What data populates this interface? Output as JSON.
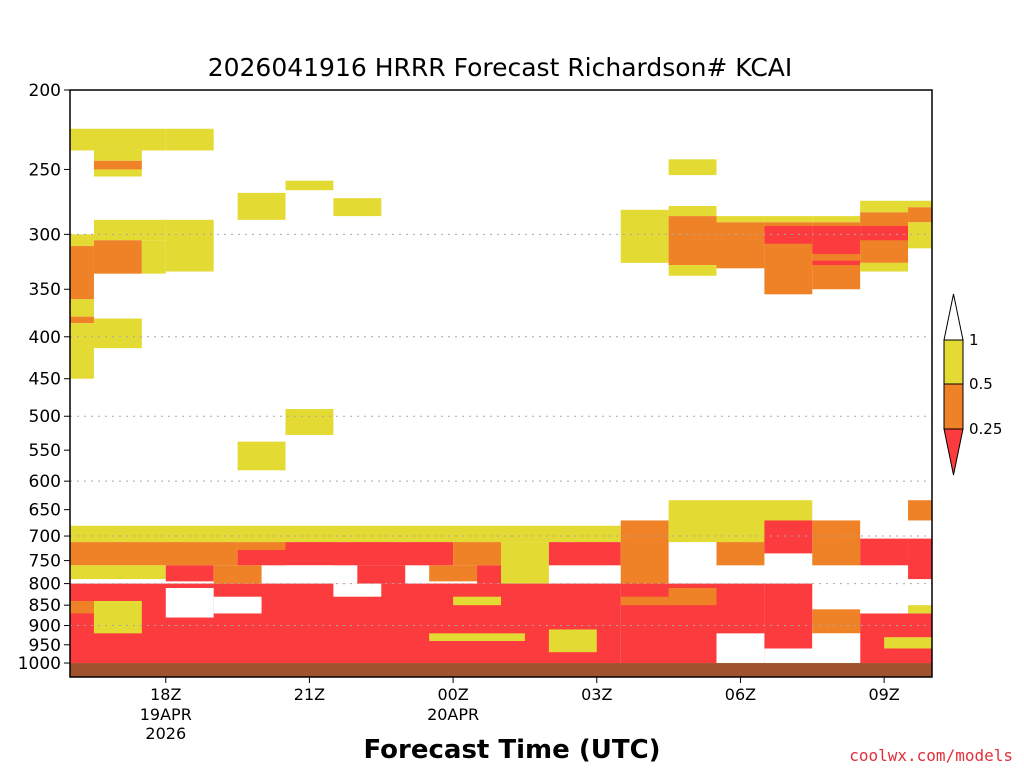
{
  "chart_data": {
    "type": "heatmap",
    "title": "2026041916 HRRR Forecast Richardson# KCAI",
    "xlabel": "Forecast Time (UTC)",
    "ylabel": "",
    "credit": "coolwx.com/models",
    "x_range_hours": [
      16.0,
      34.0
    ],
    "y_range_hpa": [
      200,
      1040
    ],
    "y_scale": "log",
    "y_ticks": [
      200,
      250,
      300,
      350,
      400,
      450,
      500,
      550,
      600,
      650,
      700,
      750,
      800,
      850,
      900,
      950,
      1000
    ],
    "gridlines_hpa": [
      300,
      400,
      500,
      600,
      700,
      800,
      900
    ],
    "x_ticks": [
      {
        "hour": 18,
        "label": "18Z",
        "sub": [
          "19APR",
          "2026"
        ]
      },
      {
        "hour": 21,
        "label": "21Z",
        "sub": []
      },
      {
        "hour": 24,
        "label": "00Z",
        "sub": [
          "20APR"
        ]
      },
      {
        "hour": 27,
        "label": "03Z",
        "sub": []
      },
      {
        "hour": 30,
        "label": "06Z",
        "sub": []
      },
      {
        "hour": 33,
        "label": "09Z",
        "sub": []
      }
    ],
    "colorbar": {
      "levels": [
        "1",
        "0.5",
        "0.25"
      ],
      "colors": {
        "white": "#ffffff",
        "yellow": "#e3da34",
        "orange": "#ef8126",
        "red": "#fc3b3e",
        "ground": "#a0522d"
      }
    },
    "cells": [
      {
        "t0": 16.0,
        "t1": 18.0,
        "p0": 223,
        "p1": 237,
        "c": "yellow"
      },
      {
        "t0": 18.0,
        "t1": 19.0,
        "p0": 223,
        "p1": 237,
        "c": "yellow"
      },
      {
        "t0": 16.5,
        "t1": 17.5,
        "p0": 237,
        "p1": 244,
        "c": "yellow"
      },
      {
        "t0": 16.5,
        "t1": 17.5,
        "p0": 244,
        "p1": 250,
        "c": "orange"
      },
      {
        "t0": 16.5,
        "t1": 17.5,
        "p0": 250,
        "p1": 255,
        "c": "yellow"
      },
      {
        "t0": 16.5,
        "t1": 18.0,
        "p0": 288,
        "p1": 305,
        "c": "yellow"
      },
      {
        "t0": 18.0,
        "t1": 19.0,
        "p0": 288,
        "p1": 333,
        "c": "yellow"
      },
      {
        "t0": 16.0,
        "t1": 16.5,
        "p0": 300,
        "p1": 310,
        "c": "yellow"
      },
      {
        "t0": 16.5,
        "t1": 17.5,
        "p0": 305,
        "p1": 335,
        "c": "orange"
      },
      {
        "t0": 17.5,
        "t1": 18.0,
        "p0": 305,
        "p1": 335,
        "c": "yellow"
      },
      {
        "t0": 16.0,
        "t1": 16.5,
        "p0": 310,
        "p1": 360,
        "c": "orange"
      },
      {
        "t0": 16.0,
        "t1": 16.5,
        "p0": 360,
        "p1": 378,
        "c": "yellow"
      },
      {
        "t0": 16.0,
        "t1": 16.5,
        "p0": 378,
        "p1": 385,
        "c": "orange"
      },
      {
        "t0": 16.0,
        "t1": 16.5,
        "p0": 385,
        "p1": 450,
        "c": "yellow"
      },
      {
        "t0": 16.5,
        "t1": 17.5,
        "p0": 380,
        "p1": 413,
        "c": "yellow"
      },
      {
        "t0": 19.5,
        "t1": 20.5,
        "p0": 267,
        "p1": 288,
        "c": "yellow"
      },
      {
        "t0": 20.5,
        "t1": 21.5,
        "p0": 258,
        "p1": 265,
        "c": "yellow"
      },
      {
        "t0": 21.5,
        "t1": 22.5,
        "p0": 271,
        "p1": 285,
        "c": "yellow"
      },
      {
        "t0": 20.5,
        "t1": 21.5,
        "p0": 490,
        "p1": 527,
        "c": "yellow"
      },
      {
        "t0": 19.5,
        "t1": 20.5,
        "p0": 537,
        "p1": 582,
        "c": "yellow"
      },
      {
        "t0": 27.5,
        "t1": 28.5,
        "p0": 280,
        "p1": 325,
        "c": "yellow"
      },
      {
        "t0": 28.5,
        "t1": 29.5,
        "p0": 243,
        "p1": 254,
        "c": "yellow"
      },
      {
        "t0": 28.5,
        "t1": 29.5,
        "p0": 277,
        "p1": 285,
        "c": "yellow"
      },
      {
        "t0": 28.5,
        "t1": 29.5,
        "p0": 285,
        "p1": 327,
        "c": "orange"
      },
      {
        "t0": 28.5,
        "t1": 29.5,
        "p0": 327,
        "p1": 337,
        "c": "yellow"
      },
      {
        "t0": 29.5,
        "t1": 30.5,
        "p0": 285,
        "p1": 290,
        "c": "yellow"
      },
      {
        "t0": 29.5,
        "t1": 30.5,
        "p0": 290,
        "p1": 330,
        "c": "orange"
      },
      {
        "t0": 30.5,
        "t1": 31.5,
        "p0": 285,
        "p1": 290,
        "c": "yellow"
      },
      {
        "t0": 30.5,
        "t1": 31.5,
        "p0": 290,
        "p1": 355,
        "c": "orange"
      },
      {
        "t0": 30.5,
        "t1": 31.5,
        "p0": 293,
        "p1": 308,
        "c": "red"
      },
      {
        "t0": 31.5,
        "t1": 32.5,
        "p0": 285,
        "p1": 290,
        "c": "yellow"
      },
      {
        "t0": 31.5,
        "t1": 32.5,
        "p0": 290,
        "p1": 350,
        "c": "orange"
      },
      {
        "t0": 31.5,
        "t1": 32.5,
        "p0": 293,
        "p1": 317,
        "c": "red"
      },
      {
        "t0": 31.5,
        "t1": 32.5,
        "p0": 323,
        "p1": 327,
        "c": "red"
      },
      {
        "t0": 32.5,
        "t1": 33.5,
        "p0": 273,
        "p1": 282,
        "c": "yellow"
      },
      {
        "t0": 32.5,
        "t1": 33.5,
        "p0": 282,
        "p1": 325,
        "c": "orange"
      },
      {
        "t0": 32.5,
        "t1": 33.5,
        "p0": 325,
        "p1": 333,
        "c": "yellow"
      },
      {
        "t0": 32.5,
        "t1": 33.5,
        "p0": 293,
        "p1": 305,
        "c": "red"
      },
      {
        "t0": 33.5,
        "t1": 34.0,
        "p0": 273,
        "p1": 278,
        "c": "yellow"
      },
      {
        "t0": 33.5,
        "t1": 34.0,
        "p0": 278,
        "p1": 290,
        "c": "orange"
      },
      {
        "t0": 33.5,
        "t1": 34.0,
        "p0": 290,
        "p1": 312,
        "c": "yellow"
      },
      {
        "t0": 16.0,
        "t1": 27.5,
        "p0": 680,
        "p1": 712,
        "c": "yellow"
      },
      {
        "t0": 16.0,
        "t1": 19.5,
        "p0": 712,
        "p1": 760,
        "c": "orange"
      },
      {
        "t0": 19.5,
        "t1": 20.5,
        "p0": 712,
        "p1": 728,
        "c": "orange"
      },
      {
        "t0": 19.5,
        "t1": 20.5,
        "p0": 728,
        "p1": 760,
        "c": "red"
      },
      {
        "t0": 20.5,
        "t1": 24.0,
        "p0": 712,
        "p1": 760,
        "c": "red"
      },
      {
        "t0": 24.0,
        "t1": 25.0,
        "p0": 712,
        "p1": 760,
        "c": "orange"
      },
      {
        "t0": 25.0,
        "t1": 26.0,
        "p0": 712,
        "p1": 800,
        "c": "yellow"
      },
      {
        "t0": 26.0,
        "t1": 27.5,
        "p0": 712,
        "p1": 760,
        "c": "red"
      },
      {
        "t0": 27.5,
        "t1": 28.5,
        "p0": 670,
        "p1": 810,
        "c": "orange"
      },
      {
        "t0": 28.5,
        "t1": 31.5,
        "p0": 633,
        "p1": 712,
        "c": "yellow"
      },
      {
        "t0": 29.5,
        "t1": 30.5,
        "p0": 712,
        "p1": 760,
        "c": "orange"
      },
      {
        "t0": 30.5,
        "t1": 31.5,
        "p0": 670,
        "p1": 735,
        "c": "red"
      },
      {
        "t0": 31.5,
        "t1": 32.5,
        "p0": 670,
        "p1": 760,
        "c": "orange"
      },
      {
        "t0": 32.5,
        "t1": 33.5,
        "p0": 705,
        "p1": 760,
        "c": "red"
      },
      {
        "t0": 33.5,
        "t1": 34.0,
        "p0": 633,
        "p1": 670,
        "c": "orange"
      },
      {
        "t0": 33.5,
        "t1": 34.0,
        "p0": 705,
        "p1": 790,
        "c": "red"
      },
      {
        "t0": 16.0,
        "t1": 18.0,
        "p0": 760,
        "p1": 790,
        "c": "yellow"
      },
      {
        "t0": 18.0,
        "t1": 19.0,
        "p0": 760,
        "p1": 795,
        "c": "red"
      },
      {
        "t0": 19.0,
        "t1": 20.0,
        "p0": 760,
        "p1": 800,
        "c": "orange"
      },
      {
        "t0": 20.5,
        "t1": 21.5,
        "p0": 760,
        "p1": 790,
        "c": "white"
      },
      {
        "t0": 22.0,
        "t1": 23.0,
        "p0": 760,
        "p1": 800,
        "c": "red"
      },
      {
        "t0": 23.5,
        "t1": 24.5,
        "p0": 760,
        "p1": 795,
        "c": "orange"
      },
      {
        "t0": 24.5,
        "t1": 25.0,
        "p0": 760,
        "p1": 800,
        "c": "red"
      },
      {
        "t0": 16.0,
        "t1": 27.5,
        "p0": 800,
        "p1": 1000,
        "c": "red"
      },
      {
        "t0": 27.5,
        "t1": 30.5,
        "p0": 800,
        "p1": 1000,
        "c": "red"
      },
      {
        "t0": 30.5,
        "t1": 31.5,
        "p0": 800,
        "p1": 960,
        "c": "red"
      },
      {
        "t0": 31.5,
        "t1": 32.5,
        "p0": 860,
        "p1": 920,
        "c": "orange"
      },
      {
        "t0": 32.5,
        "t1": 34.0,
        "p0": 870,
        "p1": 1000,
        "c": "red"
      },
      {
        "t0": 16.0,
        "t1": 16.5,
        "p0": 840,
        "p1": 870,
        "c": "orange"
      },
      {
        "t0": 16.5,
        "t1": 17.5,
        "p0": 840,
        "p1": 920,
        "c": "yellow"
      },
      {
        "t0": 18.0,
        "t1": 19.0,
        "p0": 810,
        "p1": 880,
        "c": "white"
      },
      {
        "t0": 19.0,
        "t1": 20.0,
        "p0": 830,
        "p1": 870,
        "c": "white"
      },
      {
        "t0": 21.5,
        "t1": 22.5,
        "p0": 800,
        "p1": 830,
        "c": "white"
      },
      {
        "t0": 24.0,
        "t1": 25.0,
        "p0": 830,
        "p1": 850,
        "c": "yellow"
      },
      {
        "t0": 23.5,
        "t1": 25.5,
        "p0": 920,
        "p1": 940,
        "c": "yellow"
      },
      {
        "t0": 27.5,
        "t1": 28.5,
        "p0": 830,
        "p1": 850,
        "c": "orange"
      },
      {
        "t0": 26.0,
        "t1": 27.0,
        "p0": 910,
        "p1": 970,
        "c": "yellow"
      },
      {
        "t0": 28.5,
        "t1": 29.5,
        "p0": 810,
        "p1": 850,
        "c": "orange"
      },
      {
        "t0": 29.5,
        "t1": 30.5,
        "p0": 920,
        "p1": 1000,
        "c": "white"
      },
      {
        "t0": 31.5,
        "t1": 32.5,
        "p0": 920,
        "p1": 1000,
        "c": "white"
      },
      {
        "t0": 32.5,
        "t1": 33.5,
        "p0": 850,
        "p1": 870,
        "c": "white"
      },
      {
        "t0": 33.5,
        "t1": 34.0,
        "p0": 850,
        "p1": 870,
        "c": "yellow"
      },
      {
        "t0": 33.0,
        "t1": 34.0,
        "p0": 930,
        "p1": 960,
        "c": "yellow"
      },
      {
        "t0": 16.0,
        "t1": 34.0,
        "p0": 1000,
        "p1": 1040,
        "c": "ground"
      }
    ]
  }
}
